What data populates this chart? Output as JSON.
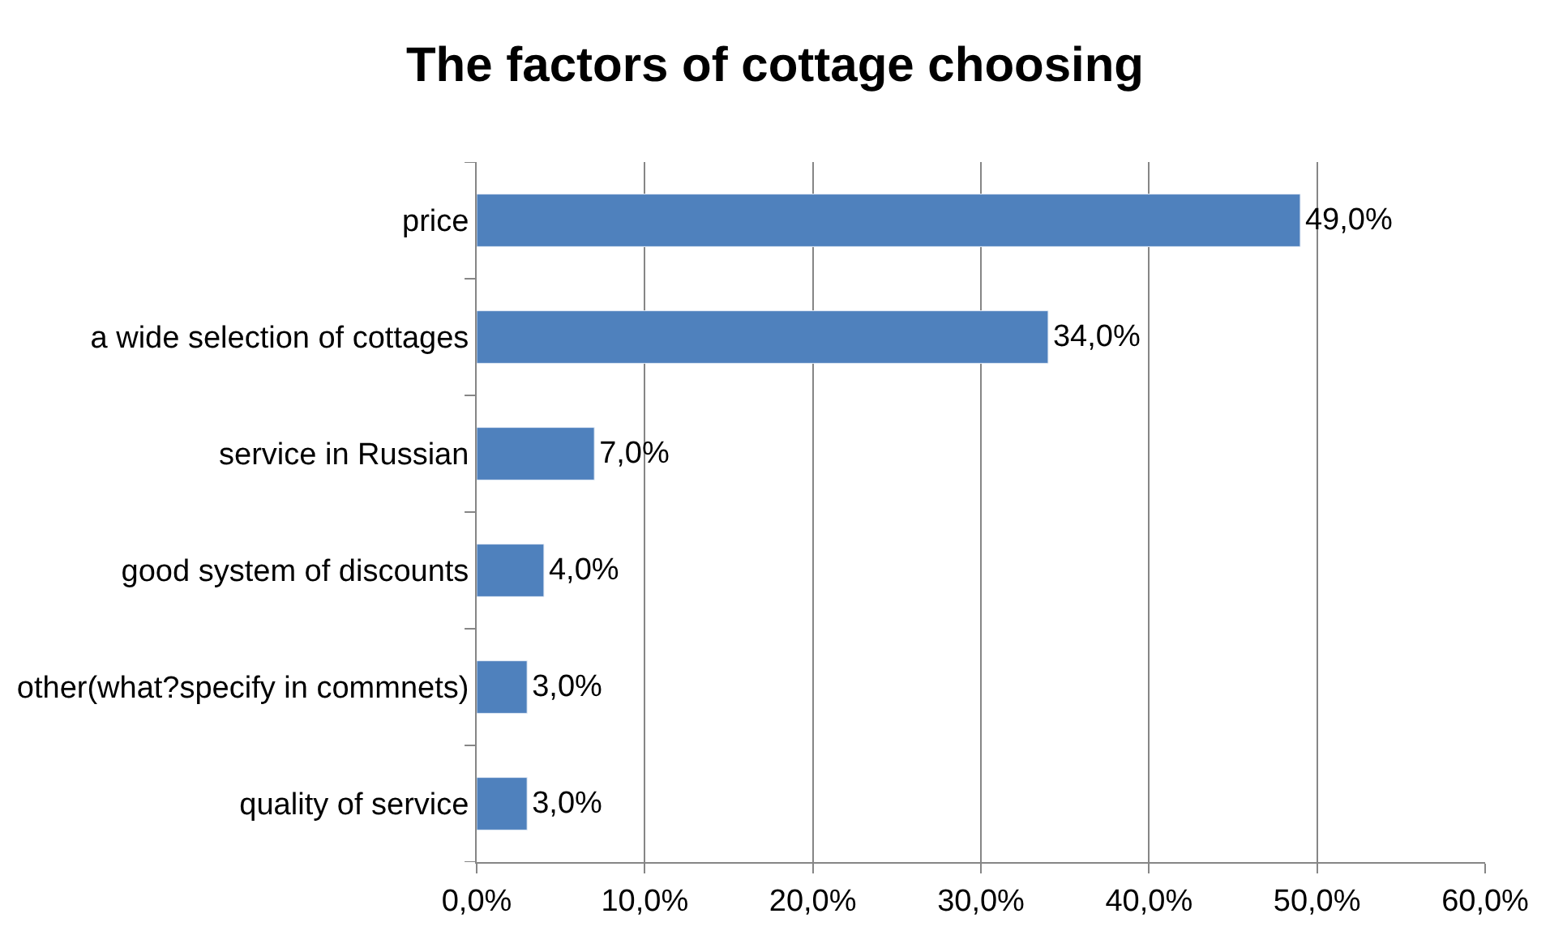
{
  "chart_data": {
    "type": "bar",
    "orientation": "horizontal",
    "title": "The factors of cottage choosing",
    "categories": [
      "price",
      "a wide selection of cottages",
      "service in Russian",
      "good system of discounts",
      "other(what?specify in commnets)",
      "quality of service"
    ],
    "values": [
      49,
      34,
      7,
      4,
      3,
      3
    ],
    "value_labels": [
      "49,0%",
      "34,0%",
      "7,0%",
      "4,0%",
      "3,0%",
      "3,0%"
    ],
    "color": "#4f81bd",
    "xlim": [
      0,
      60
    ],
    "xticks": [
      {
        "value": 0,
        "label": "0,0%"
      },
      {
        "value": 10,
        "label": "10,0%"
      },
      {
        "value": 20,
        "label": "20,0%"
      },
      {
        "value": 30,
        "label": "30,0%"
      },
      {
        "value": 40,
        "label": "40,0%"
      },
      {
        "value": 50,
        "label": "50,0%"
      },
      {
        "value": 60,
        "label": "60,0%"
      }
    ],
    "grid": "x",
    "legend": false
  }
}
